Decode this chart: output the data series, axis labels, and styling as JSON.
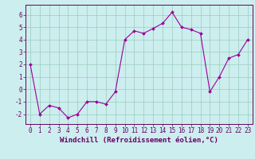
{
  "x": [
    0,
    1,
    2,
    3,
    4,
    5,
    6,
    7,
    8,
    9,
    10,
    11,
    12,
    13,
    14,
    15,
    16,
    17,
    18,
    19,
    20,
    21,
    22,
    23
  ],
  "y": [
    2.0,
    -2.0,
    -1.3,
    -1.5,
    -2.3,
    -2.0,
    -1.0,
    -1.0,
    -1.2,
    -0.2,
    4.0,
    4.7,
    4.5,
    4.9,
    5.3,
    6.2,
    5.0,
    4.8,
    4.5,
    -0.2,
    1.0,
    2.5,
    2.8,
    4.0
  ],
  "line_color": "#990099",
  "marker_color": "#990099",
  "bg_color": "#cceeee",
  "grid_color": "#99ccbb",
  "xlim": [
    -0.5,
    23.5
  ],
  "ylim": [
    -2.8,
    6.8
  ],
  "yticks": [
    -2,
    -1,
    0,
    1,
    2,
    3,
    4,
    5,
    6
  ],
  "xticks": [
    0,
    1,
    2,
    3,
    4,
    5,
    6,
    7,
    8,
    9,
    10,
    11,
    12,
    13,
    14,
    15,
    16,
    17,
    18,
    19,
    20,
    21,
    22,
    23
  ],
  "xtick_labels": [
    "0",
    "1",
    "2",
    "3",
    "4",
    "5",
    "6",
    "7",
    "8",
    "9",
    "10",
    "11",
    "12",
    "13",
    "14",
    "15",
    "16",
    "17",
    "18",
    "19",
    "20",
    "21",
    "22",
    "23"
  ],
  "font_color": "#660066",
  "axis_color": "#660066",
  "tick_label_size": 5.5,
  "xlabel": "Windchill (Refroidissement éolien,°C)",
  "xlabel_size": 6.5
}
